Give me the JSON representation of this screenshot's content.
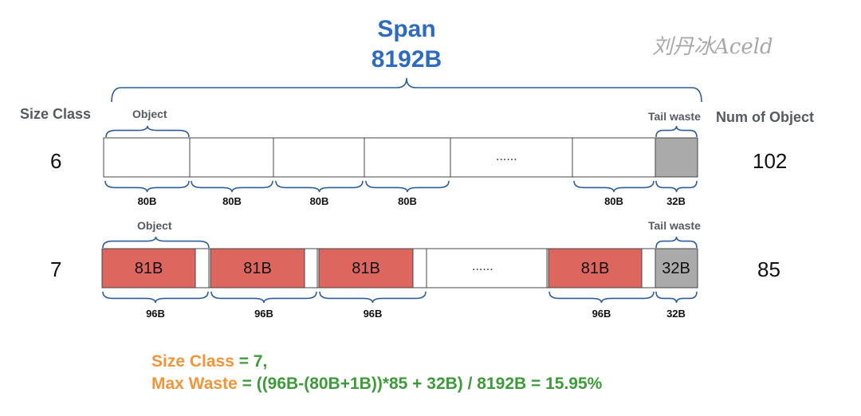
{
  "span": {
    "title": "Span",
    "size": "8192B"
  },
  "watermark": "刘丹冰Aceld",
  "headers": {
    "size_class": "Size Class",
    "num_objects": "Num of Object"
  },
  "rows": [
    {
      "size_class": "6",
      "num_objects": "102",
      "object_label": "Object",
      "tail_label": "Tail waste",
      "ellipsis": "......",
      "segments": [
        "80B",
        "80B",
        "80B",
        "80B",
        "80B"
      ],
      "tail": "32B",
      "sizes": [
        "80B",
        "80B",
        "80B",
        "80B",
        "80B",
        "32B"
      ]
    },
    {
      "size_class": "7",
      "num_objects": "85",
      "object_label": "Object",
      "tail_label": "Tail waste",
      "ellipsis": "......",
      "used": [
        "81B",
        "81B",
        "81B",
        "81B"
      ],
      "tail": "32B",
      "sizes": [
        "96B",
        "96B",
        "96B",
        "96B",
        "32B"
      ]
    }
  ],
  "formula": {
    "line1_label": "Size Class",
    "line1_value": " = 7,",
    "line2_label": "Max Waste",
    "line2_value": " = ((96B-(80B+1B))*85 + 32B) / 8192B =  15.95%"
  },
  "colors": {
    "brace": "#2f5d9a",
    "used": "#dd665e",
    "tail": "#a9aaa9",
    "title": "#2e6bbf",
    "orange": "#f0953a",
    "green": "#3f9a3c"
  }
}
